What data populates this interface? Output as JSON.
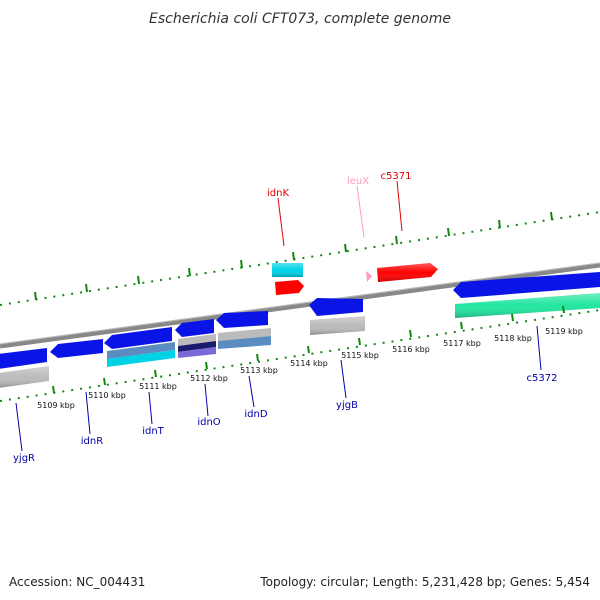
{
  "title": "Escherichia coli CFT073, complete genome",
  "accession": "Accession: NC_004431",
  "summary": "Topology: circular; Length: 5,231,428 bp; Genes: 5,454",
  "colors": {
    "forward_gene": "#ff0000",
    "forward_rna": "#00d2e6",
    "reverse_gene": "#0a14e6",
    "trna": "#ff9ac0",
    "reverse_label": "#0000aa",
    "forward_label": "#dd0000",
    "trna_label": "#ff9ac0",
    "backbone": "#888888",
    "tick": "#118811",
    "cog_grey": "#bbbbbb",
    "cog_teal": "#22e6a0",
    "cog_steel": "#5a8cbf",
    "cog_navy": "#1a1a6e"
  },
  "ticks": [
    {
      "label": "5109 kbp"
    },
    {
      "label": "5110 kbp"
    },
    {
      "label": "5111 kbp"
    },
    {
      "label": "5112 kbp"
    },
    {
      "label": "5113 kbp"
    },
    {
      "label": "5114 kbp"
    },
    {
      "label": "5115 kbp"
    },
    {
      "label": "5116 kbp"
    },
    {
      "label": "5117 kbp"
    },
    {
      "label": "5118 kbp"
    },
    {
      "label": "5119 kbp"
    }
  ],
  "gene_labels": [
    {
      "name": "idnK",
      "strand": "forward"
    },
    {
      "name": "leuX",
      "strand": "trna"
    },
    {
      "name": "c5371",
      "strand": "forward"
    },
    {
      "name": "yjgR",
      "strand": "reverse"
    },
    {
      "name": "idnR",
      "strand": "reverse"
    },
    {
      "name": "idnT",
      "strand": "reverse"
    },
    {
      "name": "idnO",
      "strand": "reverse"
    },
    {
      "name": "idnD",
      "strand": "reverse"
    },
    {
      "name": "yjgB",
      "strand": "reverse"
    },
    {
      "name": "c5372",
      "strand": "reverse"
    }
  ]
}
